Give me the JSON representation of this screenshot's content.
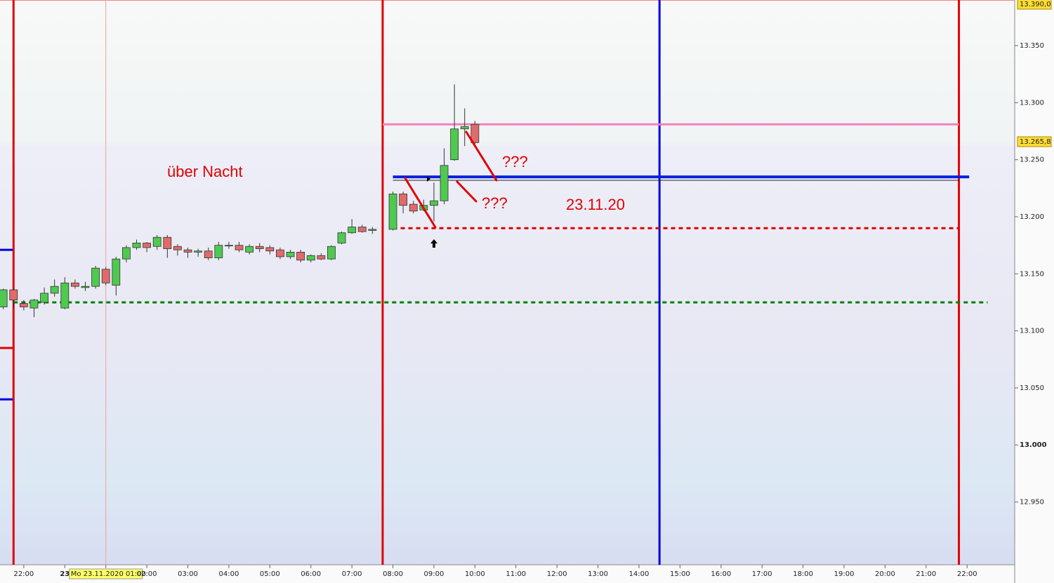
{
  "chart_data": {
    "type": "candlestick",
    "xlim": [
      -0.58,
      24.16
    ],
    "ylim": [
      12895,
      13390
    ],
    "xticks": [
      {
        "value": 0,
        "label": "22:00"
      },
      {
        "value": 1,
        "label": "23"
      },
      {
        "value": 2,
        "label": "Mo 23.11.2020 01:00"
      },
      {
        "value": 3,
        "label": "02:00"
      },
      {
        "value": 4,
        "label": "03:00"
      },
      {
        "value": 5,
        "label": "04:00"
      },
      {
        "value": 6,
        "label": "05:00"
      },
      {
        "value": 7,
        "label": "06:00"
      },
      {
        "value": 8,
        "label": "07:00"
      },
      {
        "value": 9,
        "label": "08:00"
      },
      {
        "value": 10,
        "label": "09:00"
      },
      {
        "value": 11,
        "label": "10:00"
      },
      {
        "value": 12,
        "label": "11:00"
      },
      {
        "value": 13,
        "label": "12:00"
      },
      {
        "value": 14,
        "label": "13:00"
      },
      {
        "value": 15,
        "label": "14:00"
      },
      {
        "value": 16,
        "label": "15:00"
      },
      {
        "value": 17,
        "label": "16:00"
      },
      {
        "value": 18,
        "label": "17:00"
      },
      {
        "value": 19,
        "label": "18:00"
      },
      {
        "value": 20,
        "label": "19:00"
      },
      {
        "value": 21,
        "label": "20:00"
      },
      {
        "value": 22,
        "label": "21:00"
      },
      {
        "value": 23,
        "label": "22:00"
      }
    ],
    "yticks": [
      {
        "value": 12950,
        "label": "12.950"
      },
      {
        "value": 13000,
        "label": "13.000"
      },
      {
        "value": 13050,
        "label": "13.050"
      },
      {
        "value": 13100,
        "label": "13.100"
      },
      {
        "value": 13150,
        "label": "13.150"
      },
      {
        "value": 13200,
        "label": "13.200"
      },
      {
        "value": 13250,
        "label": "13.250"
      },
      {
        "value": 13300,
        "label": "13.300"
      },
      {
        "value": 13350,
        "label": "13.350"
      }
    ],
    "price_labels": [
      {
        "value": 13390,
        "label": "13.390,0"
      },
      {
        "value": 13265.8,
        "label": "13.265,8"
      }
    ],
    "up_color": "#4fc94f",
    "down_color": "#e06b6b",
    "x": [
      -0.5,
      -0.25,
      0,
      0.25,
      0.5,
      0.75,
      1,
      1.25,
      1.5,
      1.75,
      2,
      2.25,
      2.5,
      2.75,
      3,
      3.25,
      3.5,
      3.75,
      4,
      4.25,
      4.5,
      4.75,
      5,
      5.25,
      5.5,
      5.75,
      6,
      6.25,
      6.5,
      6.75,
      7,
      7.25,
      7.5,
      7.75,
      8,
      8.25,
      8.5,
      9,
      9.25,
      9.5,
      9.75,
      10,
      10.25,
      10.5,
      10.75,
      11
    ],
    "open": [
      13121,
      13136,
      13124,
      13120,
      13125,
      13133,
      13120,
      13142,
      13138,
      13139,
      13154,
      13140,
      13163,
      13173,
      13177,
      13174,
      13182,
      13174,
      13171,
      13169,
      13170,
      13164,
      13175,
      13175,
      13169,
      13174,
      13173,
      13171,
      13165,
      13169,
      13162,
      13166,
      13163,
      13177,
      13186,
      13191,
      13188,
      13189,
      13220,
      13211,
      13206,
      13210,
      13214,
      13250,
      13277,
      13281
    ],
    "high": [
      13137,
      13137,
      13127,
      13128,
      13138,
      13145,
      13147,
      13145,
      13143,
      13157,
      13156,
      13165,
      13175,
      13180,
      13178,
      13184,
      13184,
      13176,
      13173,
      13172,
      13173,
      13178,
      13178,
      13178,
      13176,
      13177,
      13175,
      13173,
      13171,
      13171,
      13167,
      13168,
      13175,
      13187,
      13198,
      13193,
      13191,
      13222,
      13222,
      13214,
      13215,
      13230,
      13260,
      13316,
      13295,
      13284
    ],
    "low": [
      13119,
      13120,
      13118,
      13112,
      13123,
      13130,
      13119,
      13137,
      13135,
      13137,
      13140,
      13131,
      13160,
      13171,
      13169,
      13171,
      13164,
      13166,
      13164,
      13165,
      13162,
      13162,
      13172,
      13169,
      13167,
      13169,
      13167,
      13163,
      13163,
      13160,
      13160,
      13162,
      13162,
      13176,
      13185,
      13186,
      13185,
      13188,
      13203,
      13203,
      13205,
      13196,
      13211,
      13249,
      13262,
      13262
    ],
    "close": [
      13136,
      13127,
      13121,
      13127,
      13133,
      13139,
      13142,
      13139,
      13139,
      13155,
      13142,
      13163,
      13173,
      13177,
      13173,
      13182,
      13172,
      13171,
      13169,
      13170,
      13164,
      13175,
      13175,
      13171,
      13174,
      13172,
      13170,
      13165,
      13169,
      13162,
      13166,
      13163,
      13174,
      13186,
      13191,
      13187,
      13189,
      13220,
      13210,
      13205,
      13210,
      13214,
      13245,
      13277,
      13279,
      13265
    ],
    "vlines": [
      {
        "x": -0.25,
        "color": "#e00000",
        "width": 3
      },
      {
        "x": 2,
        "color": "#f0a0a0",
        "width": 1
      },
      {
        "x": 8.75,
        "color": "#e00000",
        "width": 3
      },
      {
        "x": 15.5,
        "color": "#0000e0",
        "width": 3
      },
      {
        "x": 22.8,
        "color": "#e00000",
        "width": 3
      }
    ],
    "hlines": [
      {
        "y": 13281,
        "from": 8.75,
        "to": 22.8,
        "color": "#f080c0",
        "width": 3,
        "dash": false
      },
      {
        "y": 13232,
        "from": 9,
        "to": 22.8,
        "color": "#222222",
        "width": 1,
        "dash": false
      },
      {
        "y": 13235,
        "from": 9,
        "to": 23.05,
        "color": "#0020e0",
        "width": 4,
        "dash": false
      },
      {
        "y": 13190,
        "from": 9,
        "to": 22.8,
        "color": "#e00000",
        "width": 3,
        "dash": true
      },
      {
        "y": 13125,
        "from": -0.25,
        "to": 23.5,
        "color": "#008000",
        "width": 3,
        "dash": true
      }
    ],
    "markers": [
      {
        "y": 13171,
        "color": "#0000e0"
      },
      {
        "y": 13085,
        "color": "#e00000"
      },
      {
        "y": 13040,
        "color": "#0000e0"
      }
    ],
    "annotations": [
      "über Nacht",
      "???",
      "???",
      "23.11.20"
    ]
  }
}
